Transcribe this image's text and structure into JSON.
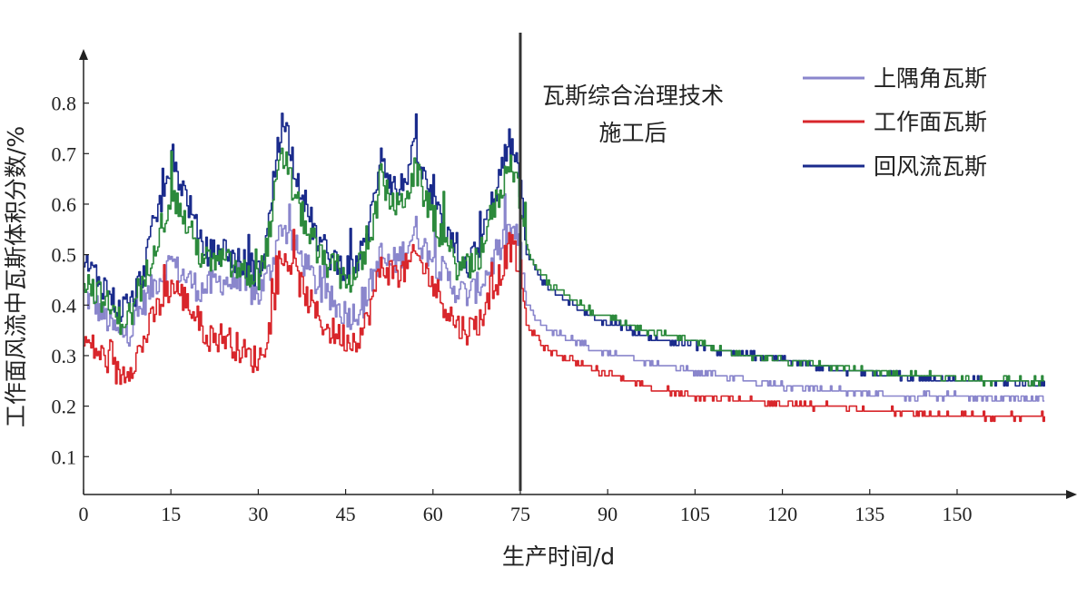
{
  "chart_data": {
    "type": "line",
    "title": "",
    "xlabel": "生产时间/d",
    "ylabel": "工作面风流中瓦斯体积分数/%",
    "xlim": [
      0,
      167
    ],
    "ylim": [
      0.025,
      0.9
    ],
    "x_ticks": [
      0,
      15,
      30,
      45,
      60,
      75,
      90,
      105,
      120,
      135,
      150
    ],
    "y_ticks": [
      0.1,
      0.2,
      0.3,
      0.4,
      0.5,
      0.6,
      0.7,
      0.8
    ],
    "grid": false,
    "legend_position": "top-right",
    "annotation": {
      "x": 75,
      "lines": [
        "瓦斯综合治理技术",
        "施工后"
      ]
    },
    "series": [
      {
        "name": "上隅角瓦斯",
        "color": "#8a86cc",
        "x": [
          0,
          2,
          4,
          6,
          8,
          10,
          12,
          14,
          15,
          16,
          18,
          20,
          22,
          24,
          26,
          28,
          30,
          32,
          33,
          34,
          35,
          36,
          38,
          40,
          42,
          44,
          46,
          48,
          50,
          51,
          52,
          54,
          56,
          57,
          58,
          60,
          62,
          64,
          66,
          68,
          70,
          72,
          73,
          74,
          75,
          76,
          78,
          80,
          84,
          88,
          92,
          96,
          100,
          105,
          110,
          115,
          120,
          125,
          130,
          135,
          140,
          145,
          150,
          155,
          160,
          165
        ],
        "values": [
          0.42,
          0.4,
          0.37,
          0.34,
          0.35,
          0.4,
          0.44,
          0.47,
          0.49,
          0.47,
          0.45,
          0.43,
          0.44,
          0.45,
          0.44,
          0.43,
          0.42,
          0.47,
          0.52,
          0.56,
          0.54,
          0.52,
          0.48,
          0.44,
          0.41,
          0.39,
          0.38,
          0.4,
          0.47,
          0.5,
          0.48,
          0.49,
          0.53,
          0.55,
          0.52,
          0.49,
          0.46,
          0.43,
          0.42,
          0.44,
          0.48,
          0.52,
          0.55,
          0.54,
          0.51,
          0.4,
          0.37,
          0.35,
          0.33,
          0.31,
          0.3,
          0.29,
          0.28,
          0.27,
          0.26,
          0.25,
          0.24,
          0.235,
          0.23,
          0.225,
          0.22,
          0.22,
          0.22,
          0.215,
          0.215,
          0.215
        ]
      },
      {
        "name": "工作面瓦斯",
        "color": "#d8262b",
        "x": [
          0,
          2,
          4,
          6,
          8,
          10,
          12,
          14,
          15,
          16,
          18,
          20,
          22,
          24,
          26,
          28,
          30,
          32,
          33,
          34,
          35,
          36,
          38,
          40,
          42,
          44,
          46,
          48,
          50,
          51,
          52,
          54,
          56,
          57,
          58,
          60,
          62,
          64,
          66,
          68,
          70,
          72,
          73,
          74,
          75,
          76,
          78,
          80,
          84,
          88,
          92,
          96,
          100,
          105,
          110,
          115,
          120,
          125,
          130,
          135,
          140,
          145,
          150,
          155,
          160,
          165
        ],
        "values": [
          0.33,
          0.31,
          0.29,
          0.26,
          0.28,
          0.32,
          0.38,
          0.42,
          0.44,
          0.43,
          0.4,
          0.36,
          0.33,
          0.34,
          0.32,
          0.3,
          0.29,
          0.36,
          0.44,
          0.48,
          0.49,
          0.47,
          0.42,
          0.38,
          0.35,
          0.34,
          0.33,
          0.35,
          0.43,
          0.48,
          0.47,
          0.46,
          0.48,
          0.5,
          0.48,
          0.44,
          0.4,
          0.36,
          0.35,
          0.37,
          0.42,
          0.48,
          0.52,
          0.5,
          0.46,
          0.36,
          0.33,
          0.31,
          0.29,
          0.27,
          0.26,
          0.24,
          0.23,
          0.22,
          0.215,
          0.21,
          0.205,
          0.2,
          0.2,
          0.19,
          0.19,
          0.185,
          0.18,
          0.18,
          0.18,
          0.18
        ]
      },
      {
        "name": "回风流瓦斯",
        "color": "#1a2b8c",
        "x": [
          0,
          2,
          4,
          6,
          8,
          10,
          12,
          14,
          15,
          16,
          18,
          20,
          22,
          24,
          26,
          28,
          30,
          32,
          33,
          34,
          35,
          36,
          38,
          40,
          42,
          44,
          46,
          48,
          50,
          51,
          52,
          54,
          56,
          57,
          58,
          60,
          62,
          64,
          66,
          68,
          70,
          72,
          73,
          74,
          75,
          76,
          78,
          80,
          84,
          88,
          92,
          96,
          100,
          105,
          110,
          115,
          120,
          125,
          130,
          135,
          140,
          145,
          150,
          155,
          160,
          165
        ],
        "values": [
          0.48,
          0.46,
          0.43,
          0.39,
          0.4,
          0.46,
          0.56,
          0.64,
          0.68,
          0.66,
          0.6,
          0.52,
          0.5,
          0.51,
          0.49,
          0.48,
          0.46,
          0.58,
          0.7,
          0.76,
          0.74,
          0.68,
          0.6,
          0.53,
          0.5,
          0.48,
          0.47,
          0.51,
          0.62,
          0.72,
          0.66,
          0.62,
          0.68,
          0.71,
          0.66,
          0.6,
          0.54,
          0.5,
          0.48,
          0.52,
          0.6,
          0.68,
          0.72,
          0.7,
          0.62,
          0.5,
          0.46,
          0.43,
          0.4,
          0.37,
          0.36,
          0.34,
          0.33,
          0.32,
          0.305,
          0.3,
          0.29,
          0.28,
          0.27,
          0.265,
          0.26,
          0.255,
          0.25,
          0.25,
          0.245,
          0.245
        ]
      },
      {
        "color": "#2c8a3c",
        "x": [
          0,
          2,
          4,
          6,
          8,
          10,
          12,
          14,
          15,
          16,
          18,
          20,
          22,
          24,
          26,
          28,
          30,
          32,
          33,
          34,
          35,
          36,
          38,
          40,
          42,
          44,
          46,
          48,
          50,
          51,
          52,
          54,
          56,
          57,
          58,
          60,
          62,
          64,
          66,
          68,
          70,
          72,
          73,
          74,
          75,
          76,
          78,
          80,
          84,
          88,
          92,
          96,
          100,
          105,
          110,
          115,
          120,
          125,
          130,
          135,
          140,
          145,
          150,
          155,
          160,
          165
        ],
        "values": [
          0.45,
          0.43,
          0.4,
          0.37,
          0.38,
          0.43,
          0.52,
          0.58,
          0.62,
          0.6,
          0.55,
          0.5,
          0.48,
          0.49,
          0.47,
          0.46,
          0.45,
          0.55,
          0.64,
          0.69,
          0.67,
          0.62,
          0.56,
          0.5,
          0.48,
          0.46,
          0.45,
          0.49,
          0.58,
          0.66,
          0.62,
          0.59,
          0.64,
          0.67,
          0.63,
          0.57,
          0.52,
          0.48,
          0.47,
          0.5,
          0.58,
          0.64,
          0.69,
          0.66,
          0.6,
          0.51,
          0.47,
          0.44,
          0.41,
          0.38,
          0.37,
          0.35,
          0.34,
          0.33,
          0.31,
          0.3,
          0.29,
          0.285,
          0.275,
          0.27,
          0.265,
          0.26,
          0.255,
          0.25,
          0.25,
          0.25
        ]
      }
    ],
    "legend": [
      {
        "label": "上隅角瓦斯",
        "color": "#8a86cc"
      },
      {
        "label": "工作面瓦斯",
        "color": "#d8262b"
      },
      {
        "label": "回风流瓦斯",
        "color": "#1a2b8c"
      }
    ]
  }
}
